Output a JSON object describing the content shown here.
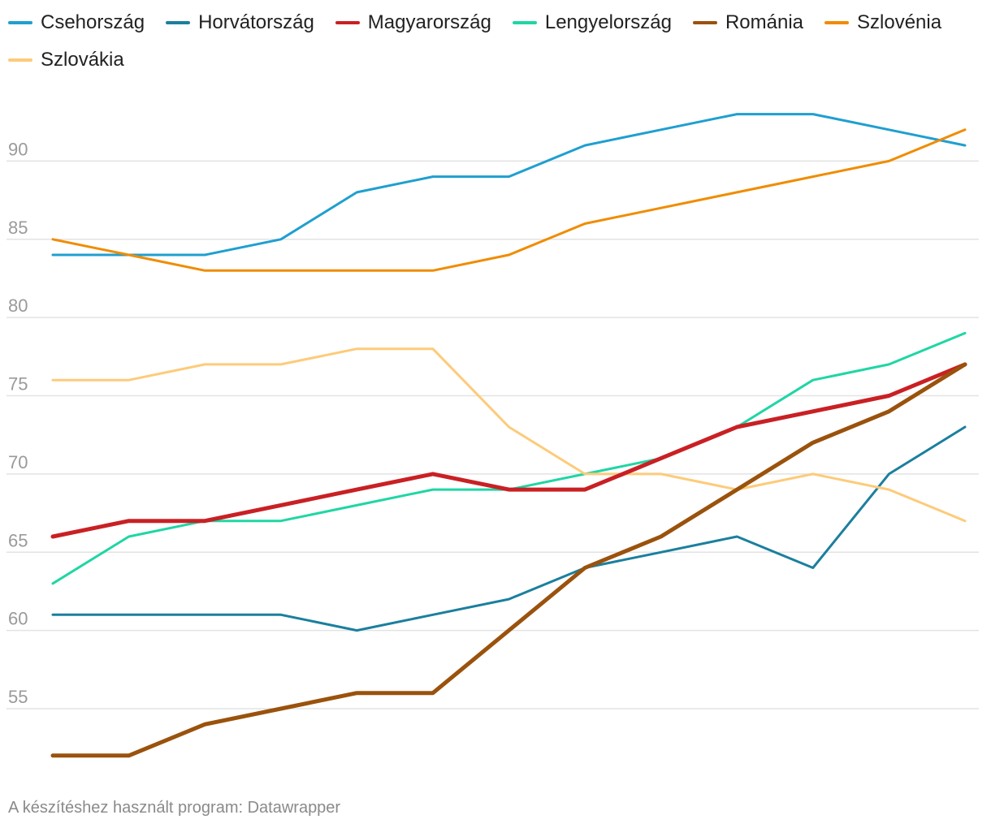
{
  "footer_note": "A készítéshez használt program: Datawrapper",
  "chart_data": {
    "type": "line",
    "title": "",
    "xlabel": "",
    "ylabel": "",
    "x": [
      1,
      2,
      3,
      4,
      5,
      6,
      7,
      8,
      9,
      10,
      11,
      12,
      13
    ],
    "ylim": [
      51.5,
      95
    ],
    "yticks": [
      55,
      60,
      65,
      70,
      75,
      80,
      85,
      90
    ],
    "grid": true,
    "legend_position": "top",
    "series": [
      {
        "name": "Csehország",
        "color": "#1f9fd0",
        "width": 3,
        "values": [
          84,
          84,
          84,
          85,
          88,
          89,
          89,
          91,
          92,
          93,
          93,
          92,
          91
        ]
      },
      {
        "name": "Horvátország",
        "color": "#1b7f9e",
        "width": 3,
        "values": [
          61,
          61,
          61,
          61,
          60,
          61,
          62,
          64,
          65,
          66,
          64,
          70,
          73
        ]
      },
      {
        "name": "Magyarország",
        "color": "#c92024",
        "width": 5,
        "values": [
          66,
          67,
          67,
          68,
          69,
          70,
          69,
          69,
          71,
          73,
          74,
          75,
          77
        ]
      },
      {
        "name": "Lengyelország",
        "color": "#1fd6a4",
        "width": 3,
        "values": [
          63,
          66,
          67,
          67,
          68,
          69,
          69,
          70,
          71,
          73,
          76,
          77,
          79
        ]
      },
      {
        "name": "Románia",
        "color": "#9a520c",
        "width": 5,
        "values": [
          52,
          52,
          54,
          55,
          56,
          56,
          60,
          64,
          66,
          69,
          72,
          74,
          77
        ]
      },
      {
        "name": "Szlovénia",
        "color": "#f08c00",
        "width": 3,
        "values": [
          85,
          84,
          83,
          83,
          83,
          83,
          84,
          86,
          87,
          88,
          89,
          90,
          92
        ]
      },
      {
        "name": "Szlovákia",
        "color": "#fdcb7a",
        "width": 3,
        "values": [
          76,
          76,
          77,
          77,
          78,
          78,
          73,
          70,
          70,
          69,
          70,
          69,
          67
        ]
      }
    ]
  }
}
